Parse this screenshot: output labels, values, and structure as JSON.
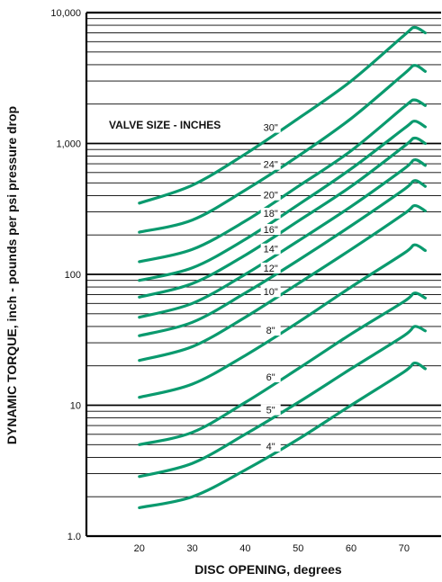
{
  "chart_data": {
    "type": "line",
    "title": "",
    "xlabel": "DISC OPENING, degrees",
    "ylabel": "DYNAMIC TORQUE, inch - pounds per psi pressure drop",
    "y_scale": "log",
    "xlim": [
      10,
      77
    ],
    "ylim": [
      1,
      10000
    ],
    "x_ticks": [
      20,
      30,
      40,
      50,
      60,
      70
    ],
    "y_tick_labels": [
      "1.0",
      "10",
      "100",
      "1,000",
      "10,000"
    ],
    "y_tick_values": [
      1,
      10,
      100,
      1000,
      10000
    ],
    "grid": "horizontal minor lines",
    "annotation": "VALVE SIZE - INCHES",
    "line_color": "#0a9a6e",
    "series": [
      {
        "name": "4\"",
        "x": [
          20,
          30,
          40,
          50,
          60,
          70,
          72,
          74
        ],
        "y": [
          1.65,
          2.0,
          3.2,
          5.5,
          10,
          18,
          21,
          19
        ]
      },
      {
        "name": "5\"",
        "x": [
          20,
          30,
          40,
          50,
          60,
          70,
          72,
          74
        ],
        "y": [
          2.85,
          3.6,
          6.0,
          10.5,
          19,
          34,
          40,
          37
        ]
      },
      {
        "name": "6\"",
        "x": [
          20,
          30,
          40,
          50,
          60,
          70,
          72,
          74
        ],
        "y": [
          5.0,
          6.2,
          10.5,
          19,
          35,
          62,
          72,
          66
        ]
      },
      {
        "name": "8\"",
        "x": [
          20,
          30,
          40,
          50,
          60,
          70,
          72,
          74
        ],
        "y": [
          11.5,
          14.5,
          24,
          43,
          80,
          145,
          168,
          152
        ]
      },
      {
        "name": "10\"",
        "x": [
          20,
          30,
          40,
          50,
          60,
          70,
          72,
          74
        ],
        "y": [
          22,
          28,
          47,
          85,
          155,
          290,
          335,
          305
        ]
      },
      {
        "name": "12\"",
        "x": [
          20,
          30,
          40,
          50,
          60,
          70,
          72,
          74
        ],
        "y": [
          34,
          43,
          72,
          128,
          235,
          445,
          520,
          470
        ]
      },
      {
        "name": "14\"",
        "x": [
          20,
          30,
          40,
          50,
          60,
          70,
          72,
          74
        ],
        "y": [
          47,
          60,
          100,
          180,
          330,
          640,
          750,
          680
        ]
      },
      {
        "name": "16\"",
        "x": [
          20,
          30,
          40,
          50,
          60,
          70,
          72,
          74
        ],
        "y": [
          67,
          85,
          140,
          255,
          470,
          950,
          1100,
          1000
        ]
      },
      {
        "name": "18\"",
        "x": [
          20,
          30,
          40,
          50,
          60,
          70,
          72,
          74
        ],
        "y": [
          90,
          112,
          185,
          340,
          640,
          1300,
          1480,
          1340
        ]
      },
      {
        "name": "20\"",
        "x": [
          20,
          30,
          40,
          50,
          60,
          70,
          72,
          74
        ],
        "y": [
          125,
          155,
          255,
          470,
          880,
          1900,
          2150,
          1950
        ]
      },
      {
        "name": "24\"",
        "x": [
          20,
          30,
          40,
          50,
          60,
          70,
          72,
          74
        ],
        "y": [
          210,
          260,
          440,
          800,
          1550,
          3400,
          3950,
          3550
        ]
      },
      {
        "name": "30\"",
        "x": [
          20,
          30,
          40,
          50,
          60,
          70,
          72,
          74
        ],
        "y": [
          350,
          480,
          830,
          1550,
          3000,
          6700,
          7700,
          7000
        ]
      }
    ]
  }
}
